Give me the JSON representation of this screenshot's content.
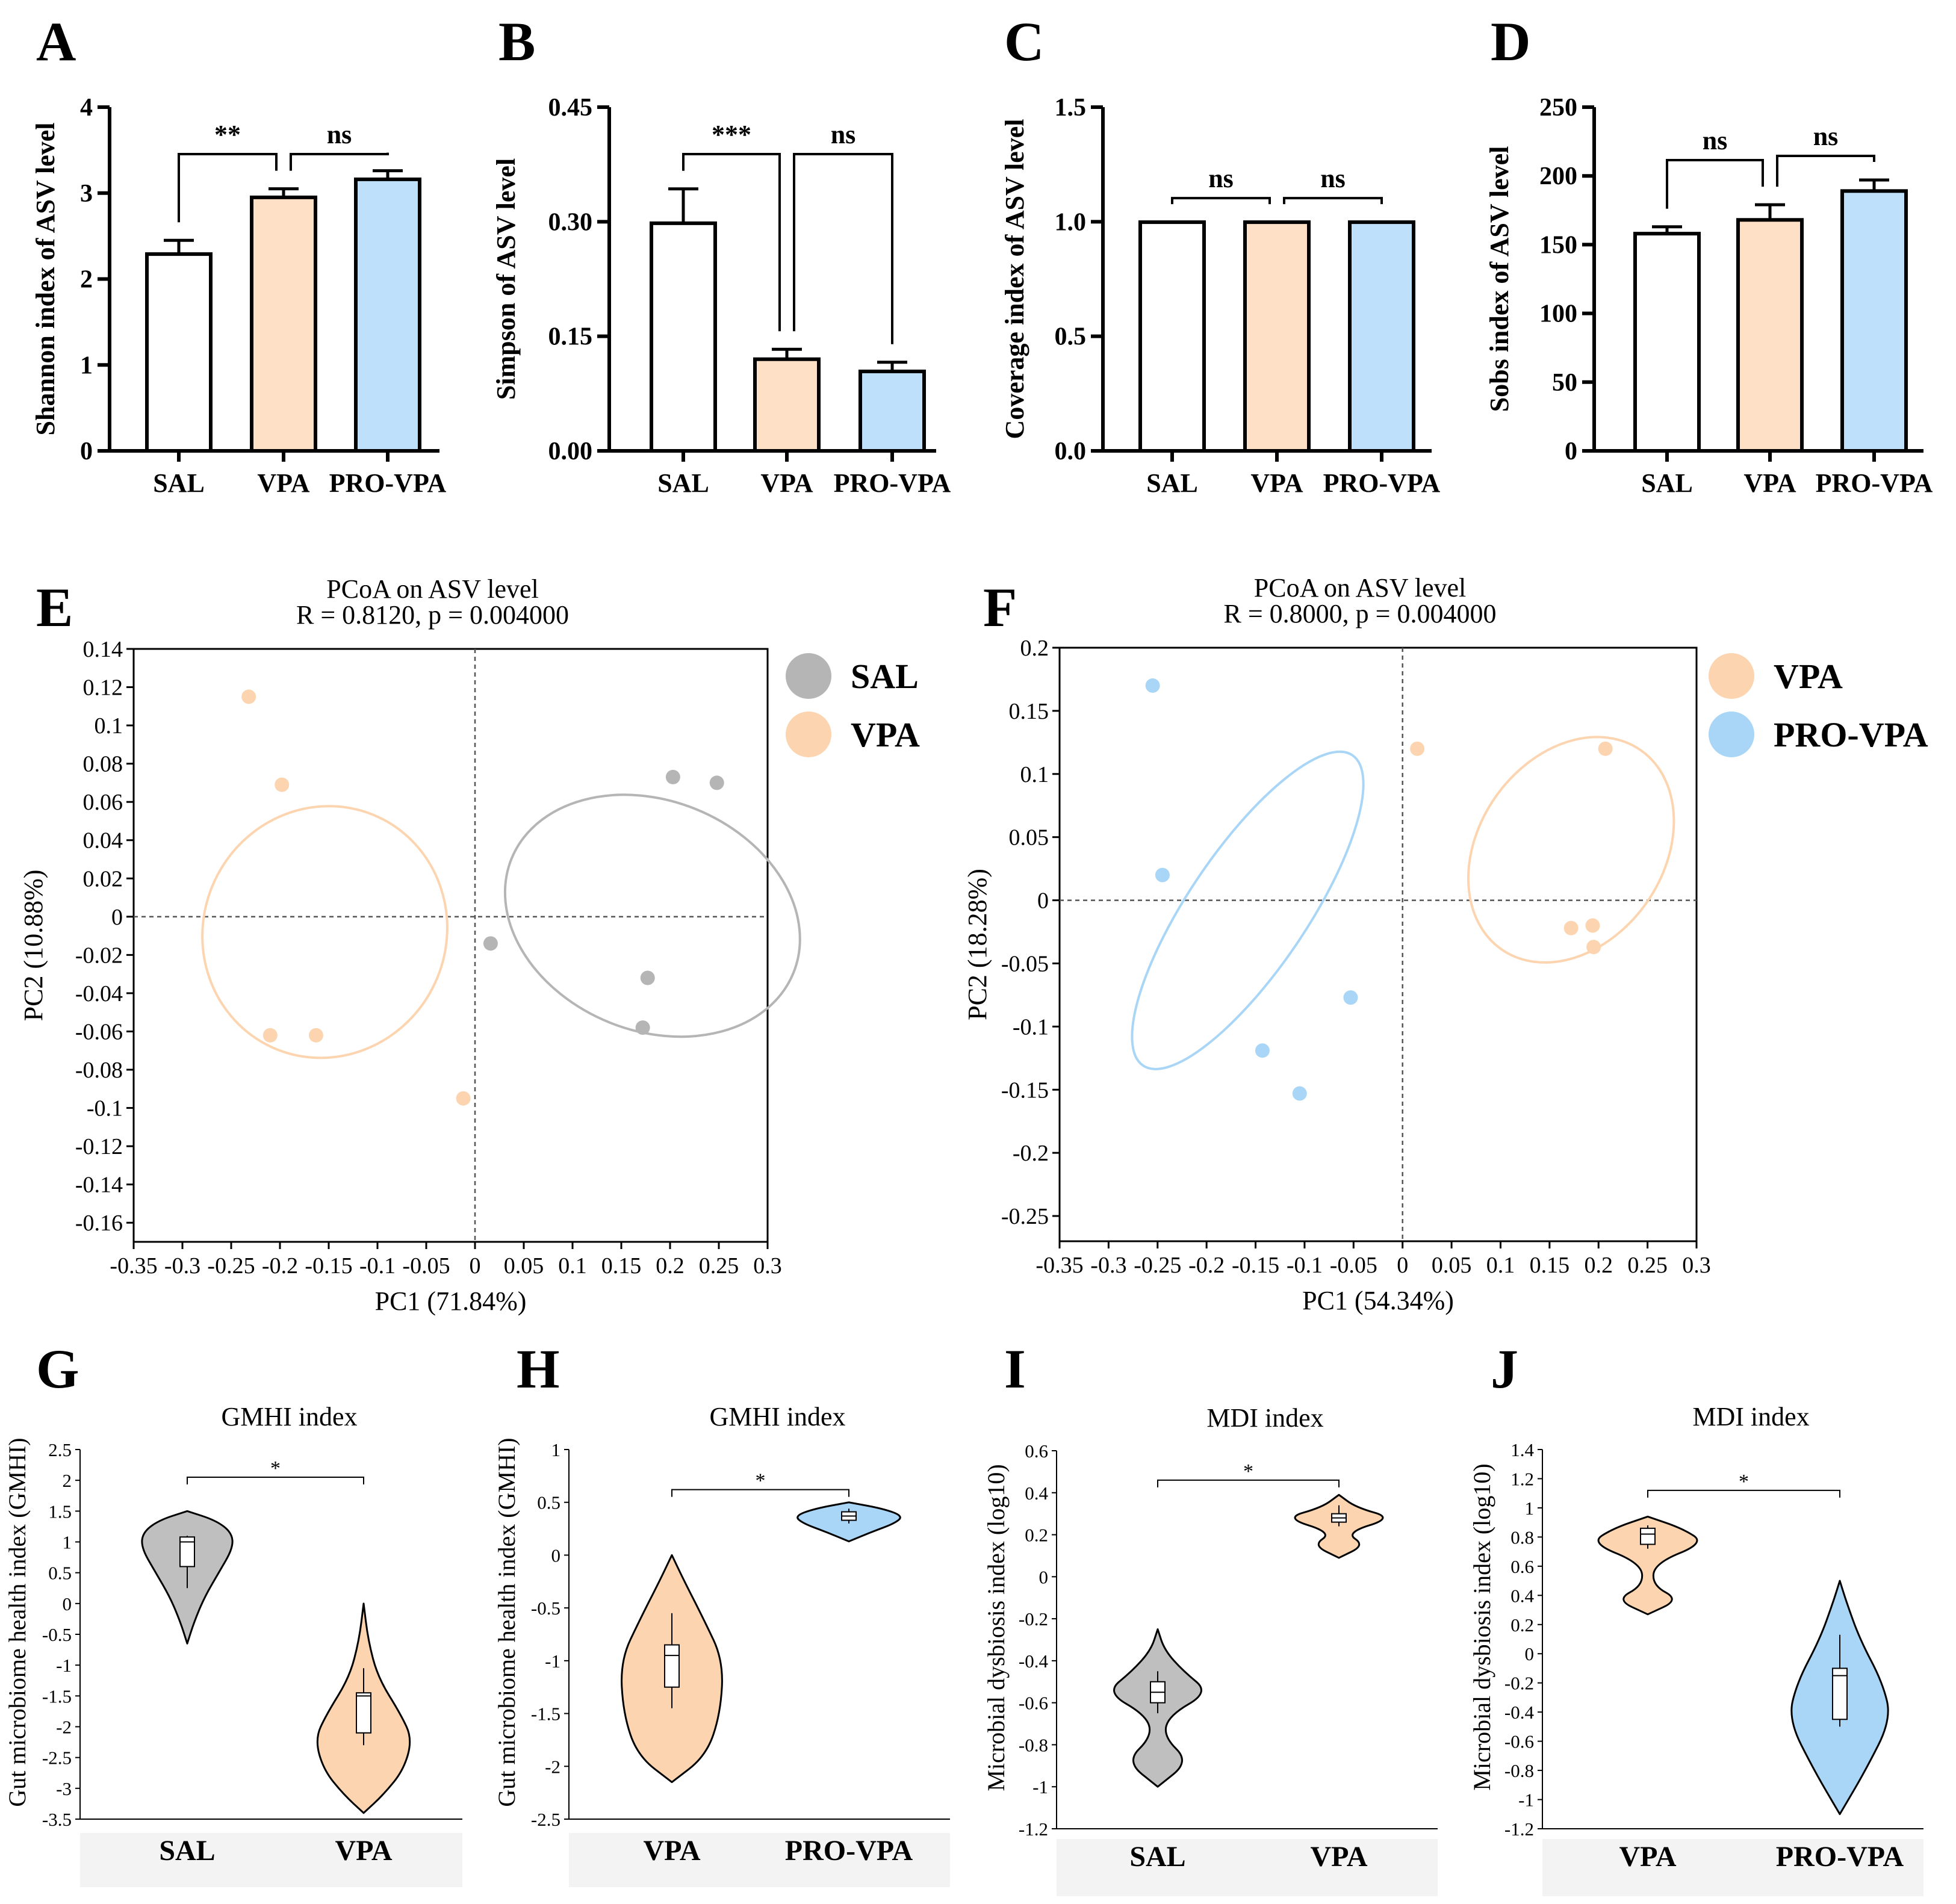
{
  "colors": {
    "SAL": "#ffffff",
    "VPA": "#fde0c5",
    "PRO-VPA": "#bfe0fa",
    "SALviolin": "#bfbfbf",
    "SALpoint": "#b5b5b5",
    "VPApoint": "#fcd5b0",
    "PROpoint": "#a9d6f7",
    "VPAellipse": "#fcd5b0",
    "SALellipse": "#bfbfbf",
    "PROellipse": "#a9d6f7"
  },
  "chart_data": [
    {
      "id": "A",
      "type": "bar",
      "letter": "A",
      "ylabel": "Shannon index of ASV level",
      "categories": [
        "SAL",
        "VPA",
        "PRO-VPA"
      ],
      "values": [
        2.29,
        2.95,
        3.16
      ],
      "errors": [
        0.16,
        0.1,
        0.1
      ],
      "ylim": [
        0,
        4
      ],
      "yticks": [
        0,
        1,
        2,
        3,
        4
      ],
      "ytick_labels": [
        "0",
        "1",
        "2",
        "3",
        "4"
      ],
      "sig": [
        {
          "from": 0,
          "to": 1,
          "label": "**"
        },
        {
          "from": 1,
          "to": 2,
          "label": "ns"
        }
      ]
    },
    {
      "id": "B",
      "type": "bar",
      "letter": "B",
      "ylabel": "Simpson of ASV level",
      "categories": [
        "SAL",
        "VPA",
        "PRO-VPA"
      ],
      "values": [
        0.298,
        0.12,
        0.104
      ],
      "errors": [
        0.045,
        0.013,
        0.012
      ],
      "ylim": [
        0,
        0.45
      ],
      "yticks": [
        0,
        0.15,
        0.3,
        0.45
      ],
      "ytick_labels": [
        "0.00",
        "0.15",
        "0.30",
        "0.45"
      ],
      "sig": [
        {
          "from": 0,
          "to": 1,
          "label": "***"
        },
        {
          "from": 1,
          "to": 2,
          "label": "ns"
        }
      ]
    },
    {
      "id": "C",
      "type": "bar",
      "letter": "C",
      "ylabel": "Coverage index of ASV level",
      "categories": [
        "SAL",
        "VPA",
        "PRO-VPA"
      ],
      "values": [
        0.998,
        0.998,
        0.998
      ],
      "errors": [
        0,
        0,
        0
      ],
      "ylim": [
        0,
        1.5
      ],
      "yticks": [
        0,
        0.5,
        1,
        1.5
      ],
      "ytick_labels": [
        "0.0",
        "0.5",
        "1.0",
        "1.5"
      ],
      "sig": [
        {
          "from": 0,
          "to": 1,
          "label": "ns"
        },
        {
          "from": 1,
          "to": 2,
          "label": "ns"
        }
      ]
    },
    {
      "id": "D",
      "type": "bar",
      "letter": "D",
      "ylabel": "Sobs index of ASV level",
      "categories": [
        "SAL",
        "VPA",
        "PRO-VPA"
      ],
      "values": [
        158,
        168,
        189
      ],
      "errors": [
        5,
        11,
        8
      ],
      "ylim": [
        0,
        250
      ],
      "yticks": [
        0,
        50,
        100,
        150,
        200,
        250
      ],
      "ytick_labels": [
        "0",
        "50",
        "100",
        "150",
        "200",
        "250"
      ],
      "sig": [
        {
          "from": 0,
          "to": 1,
          "label": "ns"
        },
        {
          "from": 1,
          "to": 2,
          "label": "ns"
        }
      ]
    },
    {
      "id": "E",
      "type": "scatter",
      "letter": "E",
      "title": "PCoA on ASV level",
      "subtitle": "R = 0.8120, p = 0.004000",
      "xlabel": "PC1 (71.84%)",
      "ylabel": "PC2 (10.88%)",
      "xlim": [
        -0.35,
        0.3
      ],
      "ylim": [
        -0.17,
        0.14
      ],
      "xticks": [
        -0.35,
        -0.3,
        -0.25,
        -0.2,
        -0.15,
        -0.1,
        -0.05,
        0,
        0.05,
        0.1,
        0.15,
        0.2,
        0.25,
        0.3
      ],
      "xtick_labels": [
        "-0.35",
        "-0.3",
        "-0.25",
        "-0.2",
        "-0.15",
        "-0.1",
        "-0.05",
        "0",
        "0.05",
        "0.1",
        "0.15",
        "0.2",
        "0.25",
        "0.3"
      ],
      "yticks": [
        0.14,
        0.12,
        0.1,
        0.08,
        0.06,
        0.04,
        0.02,
        0,
        -0.02,
        -0.04,
        -0.06,
        -0.08,
        -0.1,
        -0.12,
        -0.14,
        -0.16
      ],
      "ytick_labels": [
        "0.14",
        "0.12",
        "0.1",
        "0.08",
        "0.06",
        "0.04",
        "0.02",
        "0",
        "-0.02",
        "-0.04",
        "-0.06",
        "-0.08",
        "-0.1",
        "-0.12",
        "-0.14",
        "-0.16"
      ],
      "legend": [
        "SAL",
        "VPA"
      ],
      "series": [
        {
          "name": "SAL",
          "color": "SALpoint",
          "points": [
            [
              0.203,
              0.073
            ],
            [
              0.248,
              0.07
            ],
            [
              0.016,
              -0.014
            ],
            [
              0.177,
              -0.032
            ],
            [
              0.172,
              -0.058
            ]
          ],
          "ellipse": {
            "cx": 0.182,
            "cy": 0.0005,
            "rx": 0.118,
            "ry": 0.0795,
            "angle_deg": 68
          }
        },
        {
          "name": "VPA",
          "color": "VPApoint",
          "points": [
            [
              -0.232,
              0.115
            ],
            [
              -0.198,
              0.069
            ],
            [
              -0.21,
              -0.062
            ],
            [
              -0.163,
              -0.062
            ],
            [
              -0.012,
              -0.095
            ]
          ],
          "ellipse": {
            "cx": -0.154,
            "cy": -0.008,
            "rx": 0.13,
            "ry": 0.0635,
            "angle_deg": 65
          }
        }
      ]
    },
    {
      "id": "F",
      "type": "scatter",
      "letter": "F",
      "title": "PCoA on ASV level",
      "subtitle": "R = 0.8000, p = 0.004000",
      "xlabel": "PC1 (54.34%)",
      "ylabel": "PC2 (18.28%)",
      "xlim": [
        -0.35,
        0.3
      ],
      "ylim": [
        -0.27,
        0.2
      ],
      "xticks": [
        -0.35,
        -0.3,
        -0.25,
        -0.2,
        -0.15,
        -0.1,
        -0.05,
        0,
        0.05,
        0.1,
        0.15,
        0.2,
        0.25,
        0.3
      ],
      "xtick_labels": [
        "-0.35",
        "-0.3",
        "-0.25",
        "-0.2",
        "-0.15",
        "-0.1",
        "-0.05",
        "0",
        "0.05",
        "0.1",
        "0.15",
        "0.2",
        "0.25",
        "0.3"
      ],
      "yticks": [
        0.2,
        0.15,
        0.1,
        0.05,
        0,
        -0.05,
        -0.1,
        -0.15,
        -0.2,
        -0.25
      ],
      "ytick_labels": [
        "0.2",
        "0.15",
        "0.1",
        "0.05",
        "0",
        "-0.05",
        "-0.1",
        "-0.15",
        "-0.2",
        "-0.25"
      ],
      "legend": [
        "VPA",
        "PRO-VPA"
      ],
      "series": [
        {
          "name": "VPA",
          "color": "VPApoint",
          "points": [
            [
              0.015,
              0.12
            ],
            [
              0.207,
              0.12
            ],
            [
              0.172,
              -0.022
            ],
            [
              0.194,
              -0.02
            ],
            [
              0.195,
              -0.037
            ]
          ],
          "ellipse": {
            "cx": 0.172,
            "cy": 0.04,
            "rx": 0.124,
            "ry": 0.073,
            "angle_deg": 55
          }
        },
        {
          "name": "PRO-VPA",
          "color": "PROpoint",
          "points": [
            [
              -0.255,
              0.17
            ],
            [
              -0.245,
              0.02
            ],
            [
              -0.053,
              -0.077
            ],
            [
              -0.143,
              -0.119
            ],
            [
              -0.105,
              -0.153
            ]
          ],
          "ellipse": {
            "cx": -0.158,
            "cy": -0.008,
            "rx": 0.191,
            "ry": 0.047,
            "angle_deg": 56
          }
        }
      ]
    },
    {
      "id": "G",
      "type": "violin",
      "letter": "G",
      "title": "GMHI index",
      "ylabel": "Gut microbiome health index (GMHI)",
      "ylim": [
        -3.5,
        2.5
      ],
      "yticks": [
        2.5,
        2,
        1.5,
        1,
        0.5,
        0,
        -0.5,
        -1,
        -1.5,
        -2,
        -2.5,
        -3,
        -3.5
      ],
      "ytick_labels": [
        "2.5",
        "2",
        "1.5",
        "1",
        "0.5",
        "0",
        "-0.5",
        "-1",
        "-1.5",
        "-2",
        "-2.5",
        "-3",
        "-3.5"
      ],
      "categories": [
        "SAL",
        "VPA"
      ],
      "sig_label": "*",
      "sig_y": 2.05,
      "groups": [
        {
          "name": "SAL",
          "color": "SALviolin",
          "min": -0.65,
          "max": 1.5,
          "box": [
            0.6,
            1.08
          ],
          "median": 1.0,
          "whisker": [
            0.25,
            1.1
          ],
          "profile": [
            [
              -0.65,
              0
            ],
            [
              -0.3,
              0.12
            ],
            [
              0.1,
              0.3
            ],
            [
              0.5,
              0.55
            ],
            [
              0.9,
              0.8
            ],
            [
              1.15,
              0.78
            ],
            [
              1.35,
              0.5
            ],
            [
              1.5,
              0
            ]
          ]
        },
        {
          "name": "VPA",
          "color": "VPApoint",
          "min": -3.4,
          "max": 0.0,
          "box": [
            -2.1,
            -1.45
          ],
          "median": -1.5,
          "whisker": [
            -2.3,
            -1.05
          ],
          "profile": [
            [
              -3.4,
              0
            ],
            [
              -3.1,
              0.35
            ],
            [
              -2.7,
              0.7
            ],
            [
              -2.2,
              0.85
            ],
            [
              -1.8,
              0.65
            ],
            [
              -1.2,
              0.25
            ],
            [
              -0.6,
              0.08
            ],
            [
              0.0,
              0
            ]
          ]
        }
      ]
    },
    {
      "id": "H",
      "type": "violin",
      "letter": "H",
      "title": "GMHI index",
      "ylabel": "Gut microbiome health index (GMHI)",
      "ylim": [
        -2.5,
        1
      ],
      "yticks": [
        1,
        0.5,
        0,
        -0.5,
        -1,
        -1.5,
        -2,
        -2.5
      ],
      "ytick_labels": [
        "1",
        "0.5",
        "0",
        "-0.5",
        "-1",
        "-1.5",
        "-2",
        "-2.5"
      ],
      "categories": [
        "VPA",
        "PRO-VPA"
      ],
      "sig_label": "*",
      "sig_y": 0.62,
      "groups": [
        {
          "name": "VPA",
          "color": "VPApoint",
          "min": -2.15,
          "max": 0.0,
          "box": [
            -1.25,
            -0.85
          ],
          "median": -0.95,
          "whisker": [
            -1.45,
            -0.55
          ],
          "profile": [
            [
              -2.15,
              0
            ],
            [
              -1.9,
              0.6
            ],
            [
              -1.5,
              0.85
            ],
            [
              -1.0,
              0.9
            ],
            [
              -0.6,
              0.55
            ],
            [
              -0.25,
              0.22
            ],
            [
              0.0,
              0
            ]
          ]
        },
        {
          "name": "PRO-VPA",
          "color": "PROpoint",
          "min": 0.13,
          "max": 0.5,
          "box": [
            0.33,
            0.41
          ],
          "median": 0.37,
          "whisker": [
            0.3,
            0.44
          ],
          "profile": [
            [
              0.13,
              0
            ],
            [
              0.22,
              0.4
            ],
            [
              0.3,
              0.8
            ],
            [
              0.37,
              0.95
            ],
            [
              0.44,
              0.6
            ],
            [
              0.5,
              0
            ]
          ]
        }
      ]
    },
    {
      "id": "I",
      "type": "violin",
      "letter": "I",
      "title": "MDI index",
      "ylabel": "Microbial dysbiosis index (log10)",
      "ylim": [
        -1.2,
        0.6
      ],
      "yticks": [
        0.6,
        0.4,
        0.2,
        0,
        -0.2,
        -0.4,
        -0.6,
        -0.8,
        -1,
        -1.2
      ],
      "ytick_labels": [
        "0.6",
        "0.4",
        "0.2",
        "0",
        "-0.2",
        "-0.4",
        "-0.6",
        "-0.8",
        "-1",
        "-1.2"
      ],
      "categories": [
        "SAL",
        "VPA"
      ],
      "sig_label": "*",
      "sig_y": 0.46,
      "groups": [
        {
          "name": "SAL",
          "color": "SALviolin",
          "min": -1.0,
          "max": -0.25,
          "box": [
            -0.6,
            -0.5
          ],
          "median": -0.55,
          "whisker": [
            -0.65,
            -0.45
          ],
          "profile": [
            [
              -1.0,
              0
            ],
            [
              -0.88,
              0.55
            ],
            [
              -0.76,
              0.1
            ],
            [
              -0.66,
              0.2
            ],
            [
              -0.55,
              0.9
            ],
            [
              -0.45,
              0.45
            ],
            [
              -0.35,
              0.12
            ],
            [
              -0.25,
              0
            ]
          ]
        },
        {
          "name": "VPA",
          "color": "VPApoint",
          "min": 0.09,
          "max": 0.39,
          "box": [
            0.26,
            0.3
          ],
          "median": 0.28,
          "whisker": [
            0.24,
            0.34
          ],
          "profile": [
            [
              0.09,
              0
            ],
            [
              0.15,
              0.45
            ],
            [
              0.21,
              0.12
            ],
            [
              0.28,
              0.95
            ],
            [
              0.33,
              0.3
            ],
            [
              0.39,
              0
            ]
          ]
        }
      ]
    },
    {
      "id": "J",
      "type": "violin",
      "letter": "J",
      "title": "MDI index",
      "ylabel": "Microbial dysbiosis index (log10)",
      "ylim": [
        -1.2,
        1.4
      ],
      "yticks": [
        1.4,
        1.2,
        1,
        0.8,
        0.6,
        0.4,
        0.2,
        0,
        -0.2,
        -0.4,
        -0.6,
        -0.8,
        -1,
        -1.2
      ],
      "ytick_labels": [
        "1.4",
        "1.2",
        "1",
        "0.8",
        "0.6",
        "0.4",
        "0.2",
        "0",
        "-0.2",
        "-0.4",
        "-0.6",
        "-0.8",
        "-1",
        "-1.2"
      ],
      "categories": [
        "VPA",
        "PRO-VPA"
      ],
      "sig_label": "*",
      "sig_y": 1.12,
      "groups": [
        {
          "name": "VPA",
          "color": "VPApoint",
          "min": 0.27,
          "max": 0.94,
          "box": [
            0.75,
            0.86
          ],
          "median": 0.82,
          "whisker": [
            0.72,
            0.88
          ],
          "profile": [
            [
              0.27,
              0
            ],
            [
              0.37,
              0.55
            ],
            [
              0.47,
              0.08
            ],
            [
              0.62,
              0.12
            ],
            [
              0.76,
              1.0
            ],
            [
              0.86,
              0.6
            ],
            [
              0.94,
              0
            ]
          ]
        },
        {
          "name": "PRO-VPA",
          "color": "PROpoint",
          "min": -1.1,
          "max": 0.5,
          "box": [
            -0.45,
            -0.1
          ],
          "median": -0.15,
          "whisker": [
            -0.5,
            0.13
          ],
          "profile": [
            [
              -1.1,
              0
            ],
            [
              -0.8,
              0.45
            ],
            [
              -0.45,
              0.9
            ],
            [
              -0.2,
              0.75
            ],
            [
              0.1,
              0.35
            ],
            [
              0.35,
              0.12
            ],
            [
              0.5,
              0
            ]
          ]
        }
      ]
    }
  ]
}
